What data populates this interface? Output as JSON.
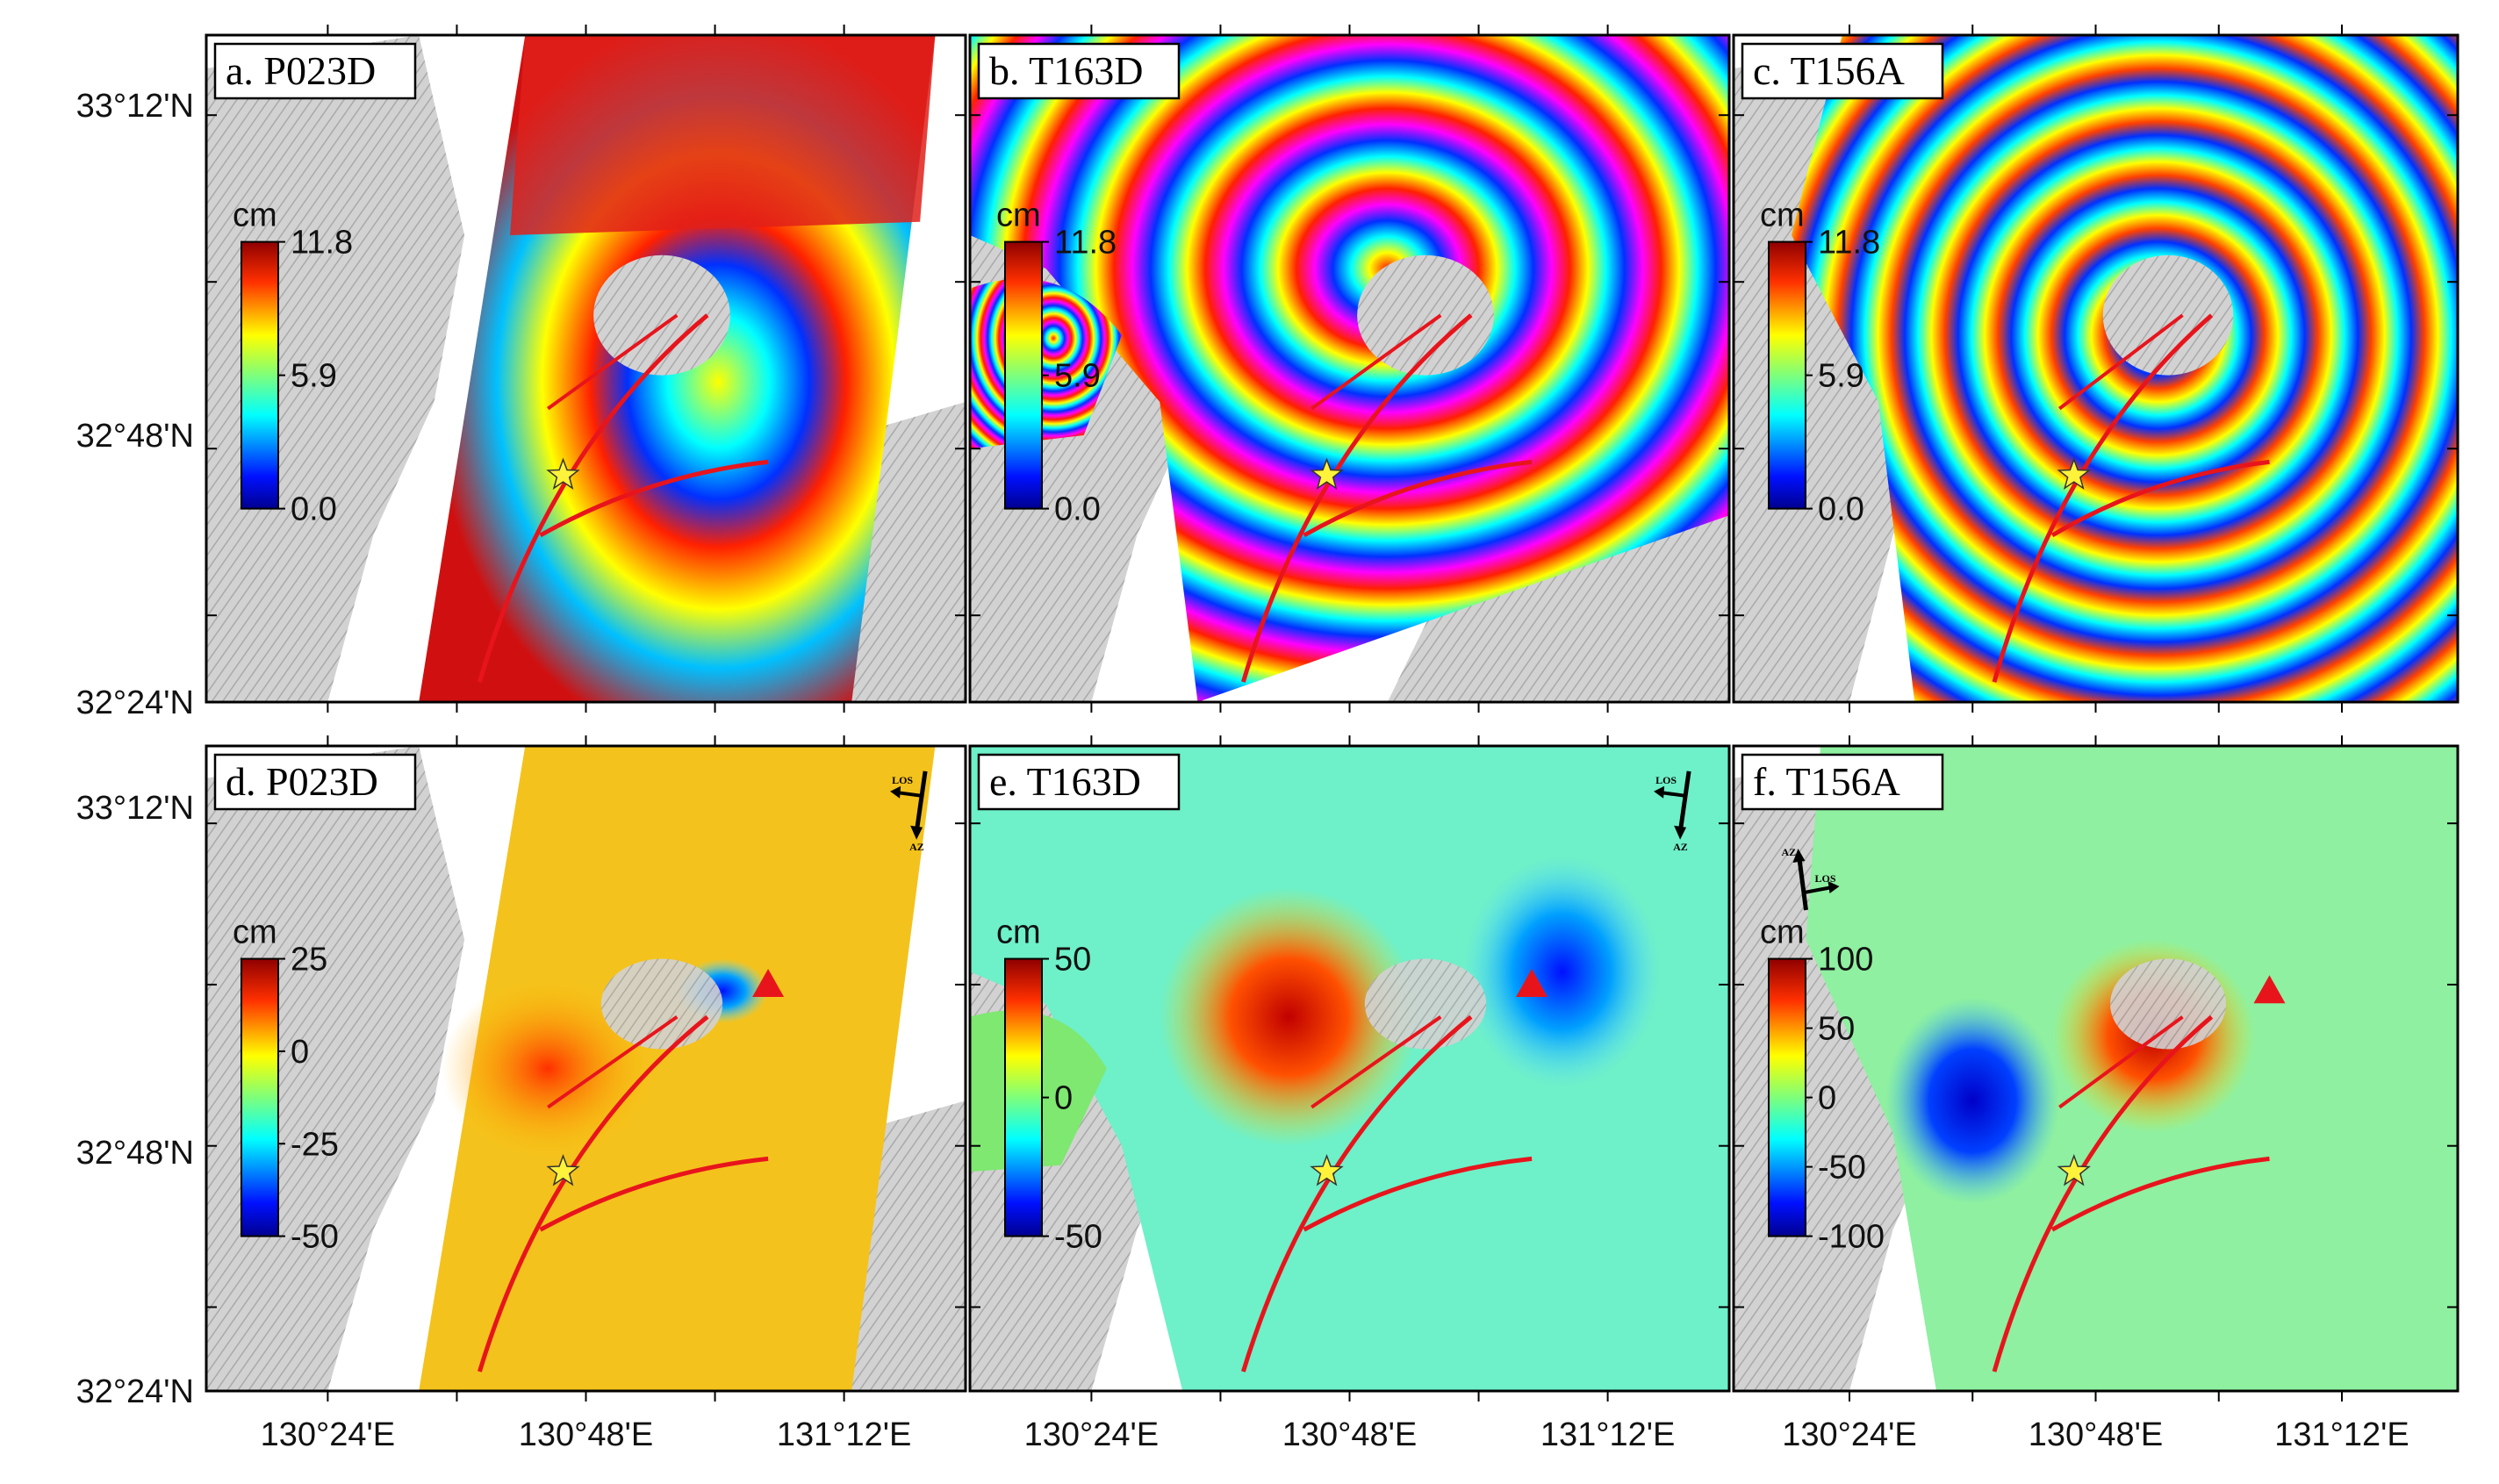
{
  "y_axis_labels": [
    "33°12'N",
    "32°48'N",
    "32°24'N"
  ],
  "x_axis_labels": [
    "130°24'E",
    "130°48'E",
    "131°12'E"
  ],
  "direction_labels": {
    "los": "LOS",
    "az": "AZ"
  },
  "colors": {
    "fault": "#e8141c",
    "epicenter": "#fff23a",
    "volcano": "#e8141c",
    "terrain": "#c9c9c9",
    "frame": "#000000"
  },
  "panels": [
    {
      "id": "a",
      "title": "a. P023D",
      "cb_unit": "cm",
      "cb_ticks": [
        "11.8",
        "5.9",
        "0.0"
      ],
      "type": "wrapped"
    },
    {
      "id": "b",
      "title": "b. T163D",
      "cb_unit": "cm",
      "cb_ticks": [
        "11.8",
        "5.9",
        "0.0"
      ],
      "type": "wrapped"
    },
    {
      "id": "c",
      "title": "c. T156A",
      "cb_unit": "cm",
      "cb_ticks": [
        "11.8",
        "5.9",
        "0.0"
      ],
      "type": "wrapped"
    },
    {
      "id": "d",
      "title": "d. P023D",
      "cb_unit": "cm",
      "cb_ticks": [
        "25",
        "0",
        "-25",
        "-50"
      ],
      "type": "unwrapped",
      "arrow": "desc"
    },
    {
      "id": "e",
      "title": "e. T163D",
      "cb_unit": "cm",
      "cb_ticks": [
        "50",
        "0",
        "-50"
      ],
      "type": "unwrapped",
      "arrow": "desc"
    },
    {
      "id": "f",
      "title": "f. T156A",
      "cb_unit": "cm",
      "cb_ticks": [
        "100",
        "50",
        "0",
        "-50",
        "-100"
      ],
      "type": "unwrapped",
      "arrow": "asc"
    }
  ]
}
